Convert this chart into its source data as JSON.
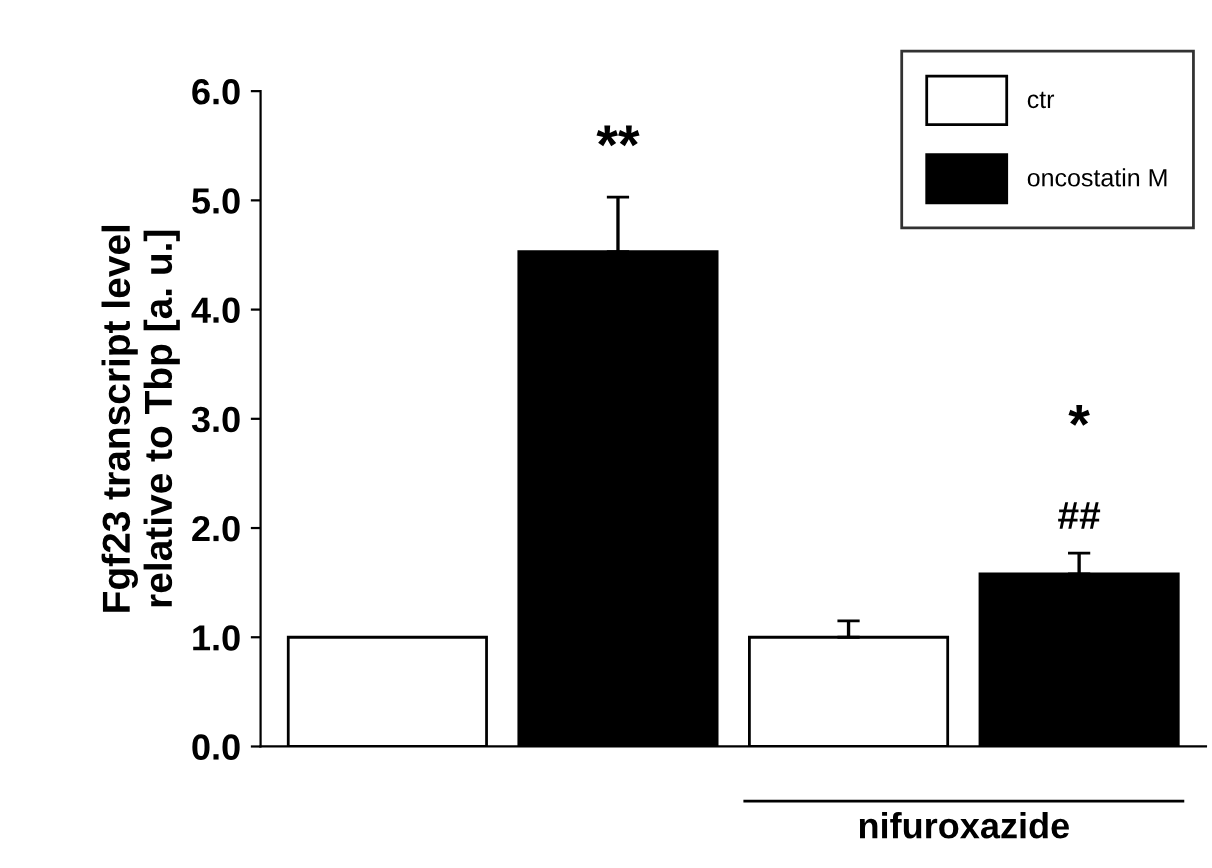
{
  "chart_data": {
    "type": "bar",
    "ylabel": "Fgf23 transcript level\nrelative to Tbp [a. u.]",
    "categories": [
      null,
      null,
      null,
      null
    ],
    "series": [
      {
        "name": "ctr",
        "color": "#ffffff",
        "values": [
          1.0,
          null,
          1.0,
          null
        ],
        "errors": [
          null,
          null,
          0.15,
          null
        ]
      },
      {
        "name": "oncostatin M",
        "color": "#000000",
        "values": [
          null,
          4.53,
          null,
          1.58
        ],
        "errors": [
          null,
          0.5,
          null,
          0.19
        ]
      }
    ],
    "ylim": [
      0,
      6.0
    ],
    "yticks": [
      {
        "value": 0,
        "label": "0.0"
      },
      {
        "value": 1,
        "label": "1.0"
      },
      {
        "value": 2,
        "label": "2.0"
      },
      {
        "value": 3,
        "label": "3.0"
      },
      {
        "value": 4,
        "label": "4.0"
      },
      {
        "value": 5,
        "label": "5.0"
      },
      {
        "value": 6,
        "label": "6.0"
      }
    ],
    "grid": false,
    "legend": "top right",
    "annotations": [
      "**",
      "*",
      "##",
      "nifuroxazide"
    ]
  }
}
